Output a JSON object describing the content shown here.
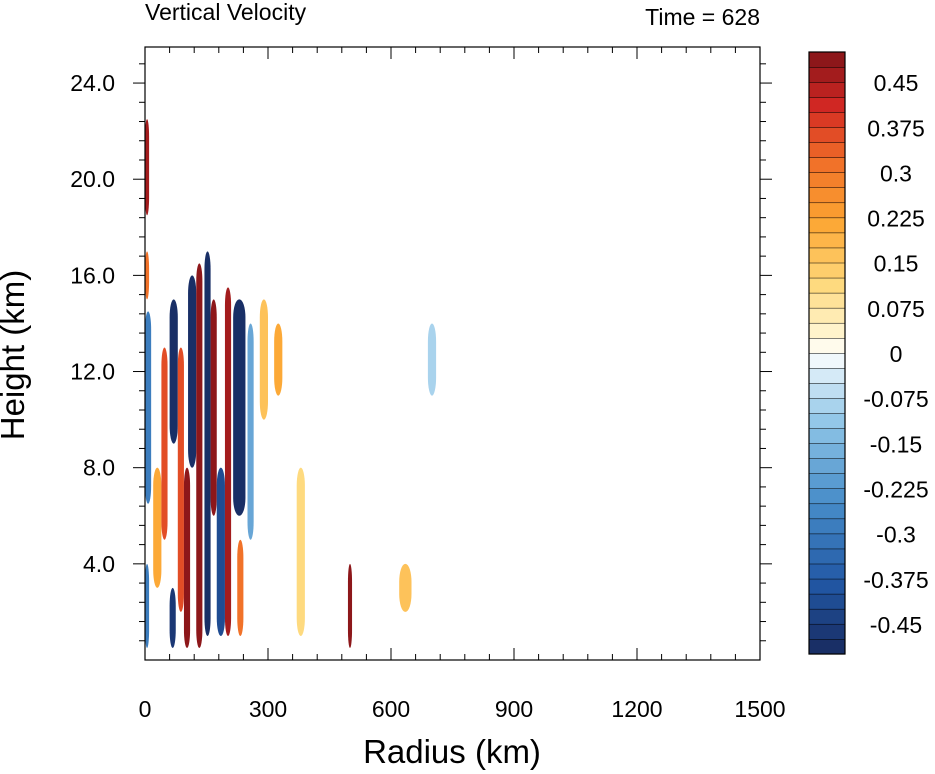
{
  "chart_data": {
    "type": "heatmap",
    "title": "Vertical Velocity",
    "subtitle": "Time = 628",
    "xlabel": "Radius (km)",
    "ylabel": "Height (km)",
    "xlim": [
      0,
      1500
    ],
    "ylim": [
      0,
      25.5
    ],
    "x_ticks": [
      0,
      300,
      600,
      900,
      1200,
      1500
    ],
    "x_tick_labels": [
      "0",
      "300",
      "600",
      "900",
      "1200",
      "1500"
    ],
    "y_ticks": [
      4,
      8,
      12,
      16,
      20,
      24
    ],
    "y_tick_labels": [
      "4.0",
      "8.0",
      "12.0",
      "16.0",
      "20.0",
      "24.0"
    ],
    "colorbar": {
      "levels": [
        -0.5,
        -0.475,
        -0.45,
        -0.425,
        -0.4,
        -0.375,
        -0.35,
        -0.325,
        -0.3,
        -0.275,
        -0.25,
        -0.225,
        -0.2,
        -0.175,
        -0.15,
        -0.125,
        -0.1,
        -0.075,
        -0.05,
        -0.025,
        0,
        0.025,
        0.05,
        0.075,
        0.1,
        0.125,
        0.15,
        0.175,
        0.2,
        0.225,
        0.25,
        0.275,
        0.3,
        0.325,
        0.35,
        0.375,
        0.4,
        0.425,
        0.45,
        0.475,
        0.5
      ],
      "labels": [
        "0.45",
        "0.375",
        "0.3",
        "0.225",
        "0.15",
        "0.075",
        "0",
        "-0.075",
        "-0.15",
        "-0.225",
        "-0.3",
        "-0.375",
        "-0.45"
      ],
      "label_values": [
        0.45,
        0.375,
        0.3,
        0.225,
        0.15,
        0.075,
        0,
        -0.075,
        -0.15,
        -0.225,
        -0.3,
        -0.375,
        -0.45
      ]
    },
    "features": [
      {
        "r0": 0,
        "r1": 10,
        "z0": 18.5,
        "z1": 22.5,
        "w": 0.45
      },
      {
        "r0": 0,
        "r1": 10,
        "z0": 15,
        "z1": 17,
        "w": 0.3
      },
      {
        "r0": 0,
        "r1": 15,
        "z0": 6.5,
        "z1": 14.5,
        "w": -0.3
      },
      {
        "r0": 0,
        "r1": 10,
        "z0": 0.5,
        "z1": 4,
        "w": -0.3
      },
      {
        "r0": 20,
        "r1": 40,
        "z0": 3,
        "z1": 8,
        "w": 0.2
      },
      {
        "r0": 40,
        "r1": 55,
        "z0": 5,
        "z1": 13,
        "w": 0.35
      },
      {
        "r0": 60,
        "r1": 80,
        "z0": 9,
        "z1": 15,
        "w": -0.5
      },
      {
        "r0": 60,
        "r1": 75,
        "z0": 0.5,
        "z1": 3,
        "w": -0.45
      },
      {
        "r0": 80,
        "r1": 95,
        "z0": 2,
        "z1": 13,
        "w": 0.35
      },
      {
        "r0": 95,
        "r1": 110,
        "z0": 0.5,
        "z1": 8,
        "w": 0.5
      },
      {
        "r0": 105,
        "r1": 125,
        "z0": 8,
        "z1": 16,
        "w": -0.5
      },
      {
        "r0": 125,
        "r1": 140,
        "z0": 0.5,
        "z1": 16.5,
        "w": 0.5
      },
      {
        "r0": 145,
        "r1": 160,
        "z0": 1,
        "z1": 17,
        "w": -0.5
      },
      {
        "r0": 160,
        "r1": 175,
        "z0": 6,
        "z1": 15,
        "w": 0.5
      },
      {
        "r0": 175,
        "r1": 195,
        "z0": 1,
        "z1": 8,
        "w": -0.4
      },
      {
        "r0": 195,
        "r1": 210,
        "z0": 1,
        "z1": 15.5,
        "w": 0.45
      },
      {
        "r0": 215,
        "r1": 245,
        "z0": 6,
        "z1": 15,
        "w": -0.5
      },
      {
        "r0": 225,
        "r1": 240,
        "z0": 1,
        "z1": 5,
        "w": 0.3
      },
      {
        "r0": 250,
        "r1": 265,
        "z0": 5,
        "z1": 14,
        "w": -0.2
      },
      {
        "r0": 280,
        "r1": 300,
        "z0": 10,
        "z1": 15,
        "w": 0.15
      },
      {
        "r0": 315,
        "r1": 335,
        "z0": 11,
        "z1": 14,
        "w": 0.2
      },
      {
        "r0": 370,
        "r1": 390,
        "z0": 1,
        "z1": 8,
        "w": 0.1
      },
      {
        "r0": 495,
        "r1": 505,
        "z0": 0.5,
        "z1": 4,
        "w": 0.5
      },
      {
        "r0": 620,
        "r1": 650,
        "z0": 2,
        "z1": 4,
        "w": 0.15
      },
      {
        "r0": 690,
        "r1": 710,
        "z0": 11,
        "z1": 14,
        "w": -0.1
      }
    ]
  }
}
